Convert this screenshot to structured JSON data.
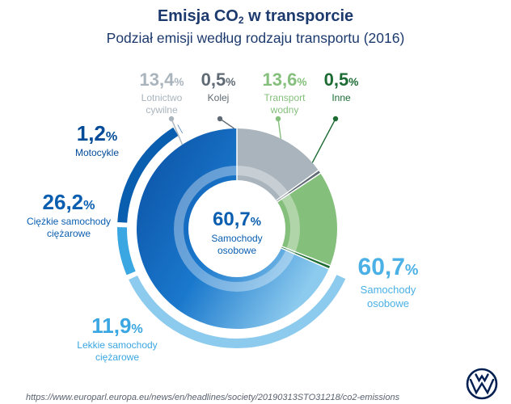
{
  "header": {
    "title_prefix": "Emisja CO",
    "title_sub": "2",
    "title_suffix": " w transporcie",
    "subtitle": "Podział emisji według rodzaju transportu (2016)"
  },
  "chart_data": {
    "type": "pie",
    "title": "Emisja CO2 w transporcie",
    "subtitle": "Podział emisji według rodzaju transportu (2016)",
    "unit": "%",
    "slices": [
      {
        "key": "lotnictwo",
        "value_text": "13,4",
        "pct_sign": "%",
        "name": "Lotnictwo cywilne",
        "value": 13.4,
        "color": "#a9b4bd"
      },
      {
        "key": "kolej",
        "value_text": "0,5",
        "pct_sign": "%",
        "name": "Kolej",
        "value": 0.5,
        "color": "#606a74"
      },
      {
        "key": "wodny",
        "value_text": "13,6",
        "pct_sign": "%",
        "name": "Transport wodny",
        "value": 13.6,
        "color": "#84bf7b"
      },
      {
        "key": "inne",
        "value_text": "0,5",
        "pct_sign": "%",
        "name": "Inne",
        "value": 0.5,
        "color": "#1b6b32"
      },
      {
        "key": "samochody_osobowe",
        "value_text": "60,7",
        "pct_sign": "%",
        "name": "Samochody osobowe",
        "value": 60.7,
        "color": "#8ccaee"
      }
    ],
    "breakdown": {
      "parent": "samochody_osobowe",
      "items": [
        {
          "key": "motocykle",
          "value_text": "1,2",
          "pct_sign": "%",
          "name": "Motocykle",
          "value": 1.2,
          "color": "#004b98"
        },
        {
          "key": "ciezkie",
          "value_text": "26,2",
          "pct_sign": "%",
          "name": "Ciężkie samochody ciężarowe",
          "value": 26.2,
          "color": "#0a5eb0"
        },
        {
          "key": "lekkie",
          "value_text": "11,9",
          "pct_sign": "%",
          "name": "Lekkie samochody ciężarowe",
          "value": 11.9,
          "color": "#3aa6e2"
        },
        {
          "key": "osobowe",
          "value_text": "60,7",
          "pct_sign": "%",
          "name": "Samochody osobowe",
          "value": 60.7,
          "color": "#8ccaee"
        }
      ]
    },
    "center": {
      "value_text": "60,7",
      "pct_sign": "%",
      "name": "Samochody osobowe"
    }
  },
  "footer": {
    "source": "https://www.europarl.europa.eu/news/en/headlines/society/20190313STO31218/co2-emissions"
  },
  "logo": {
    "name": "vw-logo",
    "color": "#001e50"
  }
}
